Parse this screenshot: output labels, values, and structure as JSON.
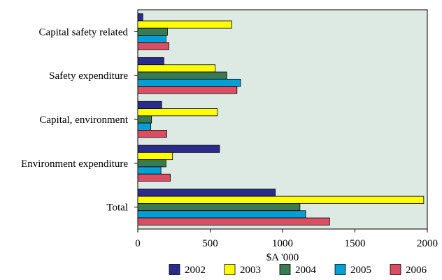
{
  "chart_data": {
    "type": "bar",
    "orientation": "horizontal",
    "title": "",
    "xlabel": "$A '000",
    "ylabel": "",
    "xlim": [
      0,
      2000
    ],
    "xticks": [
      0,
      500,
      1000,
      1500,
      2000
    ],
    "grid": false,
    "legend_position": "bottom",
    "plot_background": "#dde9e3",
    "categories": [
      "Capital safety related",
      "Safety expenditure",
      "Capital, environment",
      "Environment expenditure",
      "Total"
    ],
    "series": [
      {
        "name": "2002",
        "color": "#2b2b8c",
        "values": [
          35,
          180,
          165,
          565,
          950
        ]
      },
      {
        "name": "2003",
        "color": "#ffff00",
        "values": [
          650,
          535,
          550,
          240,
          1975
        ]
      },
      {
        "name": "2004",
        "color": "#3a7a52",
        "values": [
          205,
          615,
          95,
          195,
          1120
        ]
      },
      {
        "name": "2005",
        "color": "#00a0d6",
        "values": [
          195,
          710,
          90,
          160,
          1160
        ]
      },
      {
        "name": "2006",
        "color": "#d94e62",
        "values": [
          215,
          685,
          200,
          225,
          1325
        ]
      }
    ]
  }
}
